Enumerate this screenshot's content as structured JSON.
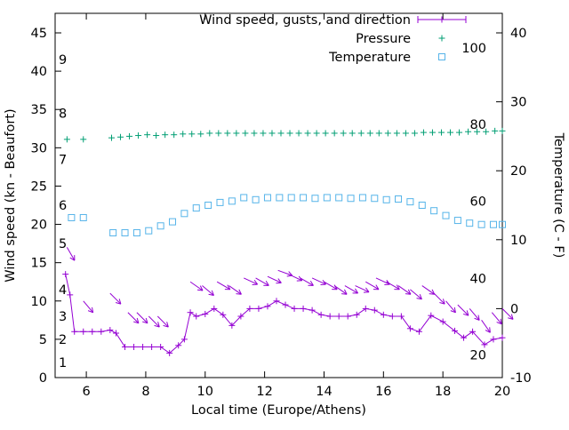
{
  "figure": {
    "background": "#ffffff"
  },
  "chart_data": {
    "type": "line",
    "title": "",
    "xlabel": "Local time (Europe/Athens)",
    "ylabel_left": "Wind speed (kn - Beaufort)",
    "ylabel_right": "Temperature (C - F)",
    "x_range": [
      4.95,
      20
    ],
    "x_ticks": [
      6,
      8,
      10,
      12,
      14,
      16,
      18,
      20
    ],
    "y_left_range": [
      0,
      47.5
    ],
    "y_left_ticks": [
      0,
      5,
      10,
      15,
      20,
      25,
      30,
      35,
      40,
      45
    ],
    "y_right_range": [
      -10,
      42.8
    ],
    "y_right_ticks": [
      -10,
      0,
      10,
      20,
      30,
      40
    ],
    "grid": false,
    "legend_position": "top-right-inside",
    "colors": {
      "wind": "#9400d3",
      "pressure": "#009e73",
      "temperature": "#56b4e9",
      "axis": "#000000"
    },
    "beaufort_labels": [
      {
        "label": "1",
        "kn": 2
      },
      {
        "label": "2",
        "kn": 5
      },
      {
        "label": "3",
        "kn": 8
      },
      {
        "label": "4",
        "kn": 11.5
      },
      {
        "label": "5",
        "kn": 17.5
      },
      {
        "label": "6",
        "kn": 22.5
      },
      {
        "label": "7",
        "kn": 28.5
      },
      {
        "label": "8",
        "kn": 34.5
      },
      {
        "label": "9",
        "kn": 41.5
      }
    ],
    "fahrenheit_labels": [
      {
        "label": "20",
        "c": -6.7
      },
      {
        "label": "40",
        "c": 4.4
      },
      {
        "label": "60",
        "c": 15.6
      },
      {
        "label": "80",
        "c": 26.7
      },
      {
        "label": "100",
        "c": 37.8
      }
    ],
    "legend": [
      {
        "label": "Wind speed, gusts, and direction",
        "color": "#9400d3",
        "sample": "errorbar-plus"
      },
      {
        "label": "Pressure",
        "color": "#009e73",
        "sample": "plus"
      },
      {
        "label": "Temperature",
        "color": "#56b4e9",
        "sample": "square"
      }
    ],
    "series": [
      {
        "name": "wind_speed",
        "axis": "left",
        "color": "#9400d3",
        "style": "line+plus",
        "units": "kn",
        "points": [
          [
            5.3,
            13.5
          ],
          [
            5.45,
            10.8
          ],
          [
            5.6,
            6
          ],
          [
            5.9,
            6
          ],
          [
            6.2,
            6
          ],
          [
            6.5,
            6
          ],
          [
            6.8,
            6.2
          ],
          [
            7.0,
            5.8
          ],
          [
            7.3,
            4
          ],
          [
            7.6,
            4
          ],
          [
            7.9,
            4
          ],
          [
            8.2,
            4
          ],
          [
            8.5,
            4
          ],
          [
            8.8,
            3.2
          ],
          [
            9.1,
            4.2
          ],
          [
            9.3,
            5
          ],
          [
            9.5,
            8.5
          ],
          [
            9.7,
            8
          ],
          [
            10.0,
            8.3
          ],
          [
            10.3,
            9
          ],
          [
            10.6,
            8.2
          ],
          [
            10.9,
            6.8
          ],
          [
            11.2,
            8
          ],
          [
            11.5,
            9
          ],
          [
            11.8,
            9
          ],
          [
            12.1,
            9.3
          ],
          [
            12.4,
            10
          ],
          [
            12.7,
            9.5
          ],
          [
            13.0,
            9
          ],
          [
            13.3,
            9
          ],
          [
            13.6,
            8.8
          ],
          [
            13.9,
            8.2
          ],
          [
            14.2,
            8
          ],
          [
            14.5,
            8
          ],
          [
            14.8,
            8
          ],
          [
            15.1,
            8.2
          ],
          [
            15.4,
            9
          ],
          [
            15.7,
            8.8
          ],
          [
            16.0,
            8.2
          ],
          [
            16.3,
            8
          ],
          [
            16.6,
            8
          ],
          [
            16.9,
            6.4
          ],
          [
            17.2,
            6
          ],
          [
            17.6,
            8.1
          ],
          [
            18.0,
            7.3
          ],
          [
            18.4,
            6.1
          ],
          [
            18.7,
            5.2
          ],
          [
            19.0,
            6
          ],
          [
            19.4,
            4.3
          ],
          [
            19.7,
            5
          ],
          [
            20.0,
            5.2
          ]
        ]
      },
      {
        "name": "wind_gusts_direction",
        "axis": "left",
        "color": "#9400d3",
        "style": "arrows",
        "units": "kn",
        "points": [
          [
            5.35,
            17,
            60
          ],
          [
            5.9,
            10,
            50
          ],
          [
            6.8,
            11,
            45
          ],
          [
            7.4,
            8.5,
            45
          ],
          [
            7.7,
            8.5,
            45
          ],
          [
            8.1,
            8,
            45
          ],
          [
            8.4,
            8,
            45
          ],
          [
            9.5,
            12.5,
            35
          ],
          [
            9.9,
            12,
            40
          ],
          [
            10.4,
            12.5,
            30
          ],
          [
            10.8,
            12,
            35
          ],
          [
            11.3,
            13,
            25
          ],
          [
            11.7,
            13,
            30
          ],
          [
            12.1,
            13.2,
            25
          ],
          [
            12.45,
            14,
            20
          ],
          [
            12.8,
            13.5,
            25
          ],
          [
            13.2,
            13,
            30
          ],
          [
            13.6,
            13,
            25
          ],
          [
            14.0,
            12.5,
            30
          ],
          [
            14.35,
            12,
            35
          ],
          [
            14.7,
            12,
            30
          ],
          [
            15.05,
            12,
            25
          ],
          [
            15.4,
            12.5,
            30
          ],
          [
            15.75,
            13,
            25
          ],
          [
            16.1,
            12.5,
            30
          ],
          [
            16.5,
            12,
            35
          ],
          [
            16.9,
            11.5,
            40
          ],
          [
            17.3,
            12,
            35
          ],
          [
            17.7,
            11,
            45
          ],
          [
            18.1,
            10,
            50
          ],
          [
            18.5,
            9.5,
            45
          ],
          [
            18.9,
            9,
            50
          ],
          [
            19.3,
            7.5,
            55
          ],
          [
            19.65,
            8.5,
            50
          ],
          [
            20.0,
            9,
            45
          ]
        ]
      },
      {
        "name": "pressure",
        "axis": "left",
        "color": "#009e73",
        "style": "plus",
        "units": "scaled",
        "points": [
          [
            5.35,
            31.1
          ],
          [
            5.9,
            31.1
          ],
          [
            6.85,
            31.3
          ],
          [
            7.15,
            31.4
          ],
          [
            7.45,
            31.5
          ],
          [
            7.75,
            31.6
          ],
          [
            8.05,
            31.7
          ],
          [
            8.35,
            31.6
          ],
          [
            8.65,
            31.7
          ],
          [
            8.95,
            31.7
          ],
          [
            9.25,
            31.8
          ],
          [
            9.55,
            31.8
          ],
          [
            9.85,
            31.8
          ],
          [
            10.15,
            31.9
          ],
          [
            10.45,
            31.9
          ],
          [
            10.75,
            31.9
          ],
          [
            11.05,
            31.9
          ],
          [
            11.35,
            31.9
          ],
          [
            11.65,
            31.9
          ],
          [
            11.95,
            31.9
          ],
          [
            12.25,
            31.9
          ],
          [
            12.55,
            31.9
          ],
          [
            12.85,
            31.9
          ],
          [
            13.15,
            31.9
          ],
          [
            13.45,
            31.9
          ],
          [
            13.75,
            31.9
          ],
          [
            14.05,
            31.9
          ],
          [
            14.35,
            31.9
          ],
          [
            14.65,
            31.9
          ],
          [
            14.95,
            31.9
          ],
          [
            15.25,
            31.9
          ],
          [
            15.55,
            31.9
          ],
          [
            15.85,
            31.9
          ],
          [
            16.15,
            31.9
          ],
          [
            16.45,
            31.9
          ],
          [
            16.75,
            31.9
          ],
          [
            17.05,
            31.9
          ],
          [
            17.35,
            32.0
          ],
          [
            17.65,
            32.0
          ],
          [
            17.95,
            32.0
          ],
          [
            18.25,
            32.0
          ],
          [
            18.55,
            32.0
          ],
          [
            18.85,
            32.1
          ],
          [
            19.15,
            32.1
          ],
          [
            19.45,
            32.1
          ],
          [
            19.75,
            32.2
          ],
          [
            20.0,
            32.2
          ]
        ]
      },
      {
        "name": "temperature",
        "axis": "right",
        "color": "#56b4e9",
        "style": "square",
        "units": "C",
        "points": [
          [
            5.5,
            13.2
          ],
          [
            5.9,
            13.2
          ],
          [
            6.9,
            11.0
          ],
          [
            7.3,
            11.0
          ],
          [
            7.7,
            11.0
          ],
          [
            8.1,
            11.3
          ],
          [
            8.5,
            12.0
          ],
          [
            8.9,
            12.6
          ],
          [
            9.3,
            13.8
          ],
          [
            9.7,
            14.6
          ],
          [
            10.1,
            15.0
          ],
          [
            10.5,
            15.4
          ],
          [
            10.9,
            15.6
          ],
          [
            11.3,
            16.1
          ],
          [
            11.7,
            15.8
          ],
          [
            12.1,
            16.1
          ],
          [
            12.5,
            16.1
          ],
          [
            12.9,
            16.1
          ],
          [
            13.3,
            16.1
          ],
          [
            13.7,
            16.0
          ],
          [
            14.1,
            16.1
          ],
          [
            14.5,
            16.1
          ],
          [
            14.9,
            16.0
          ],
          [
            15.3,
            16.1
          ],
          [
            15.7,
            16.0
          ],
          [
            16.1,
            15.8
          ],
          [
            16.5,
            15.9
          ],
          [
            16.9,
            15.5
          ],
          [
            17.3,
            15.0
          ],
          [
            17.7,
            14.2
          ],
          [
            18.1,
            13.5
          ],
          [
            18.5,
            12.8
          ],
          [
            18.9,
            12.4
          ],
          [
            19.3,
            12.2
          ],
          [
            19.7,
            12.2
          ],
          [
            20.0,
            12.2
          ]
        ]
      }
    ]
  }
}
